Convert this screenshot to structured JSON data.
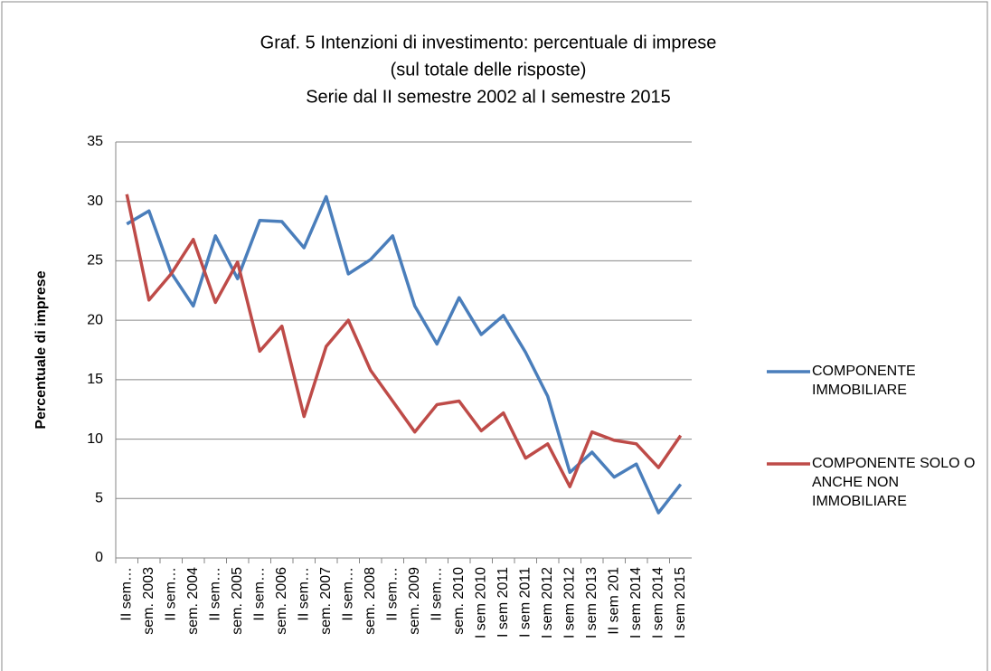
{
  "chart_data": {
    "type": "line",
    "title": [
      "Graf. 5 Intenzioni di investimento: percentuale di imprese",
      "(sul totale delle risposte)",
      "Serie dal II semestre 2002 al I semestre 2015"
    ],
    "y_label": "Percentuale di imprese",
    "categories": [
      "II sem…",
      "sem. 2003",
      "II sem…",
      "sem. 2004",
      "II sem…",
      "sem. 2005",
      "II sem…",
      "sem. 2006",
      "II sem…",
      "sem. 2007",
      "II sem…",
      "sem. 2008",
      "II sem…",
      "sem. 2009",
      "II sem…",
      "sem. 2010",
      "I sem 2010",
      "I sem 2011",
      "I sem 2011",
      "I sem 2012",
      "I sem 2012",
      "I sem 2013",
      "II sem 201",
      "I sem 2014",
      "I sem 2014",
      "I sem 2015"
    ],
    "series": [
      {
        "name": "COMPONENTE IMMOBILIARE",
        "color": "#4a7ebb",
        "values": [
          28.1,
          29.2,
          24,
          21.2,
          27.1,
          23.5,
          28.4,
          28.3,
          26.1,
          30.4,
          23.9,
          25.1,
          27.1,
          21.2,
          18,
          21.9,
          18.8,
          20.4,
          17.3,
          13.6,
          7.2,
          8.9,
          6.8,
          7.9,
          3.8,
          6.2
        ]
      },
      {
        "name": "COMPONENTE SOLO O ANCHE NON IMMOBILIARE",
        "color": "#be4b48",
        "values": [
          30.6,
          21.7,
          23.9,
          26.8,
          21.5,
          24.9,
          17.4,
          19.5,
          11.9,
          17.8,
          20,
          15.8,
          13.2,
          10.6,
          12.9,
          13.2,
          10.7,
          12.2,
          8.4,
          9.6,
          6,
          10.6,
          9.9,
          9.6,
          7.6,
          10.3
        ]
      }
    ],
    "ylim": [
      0,
      35
    ],
    "yticks": [
      0,
      5,
      10,
      15,
      20,
      25,
      30,
      35
    ],
    "grid": true,
    "legend": "right"
  }
}
